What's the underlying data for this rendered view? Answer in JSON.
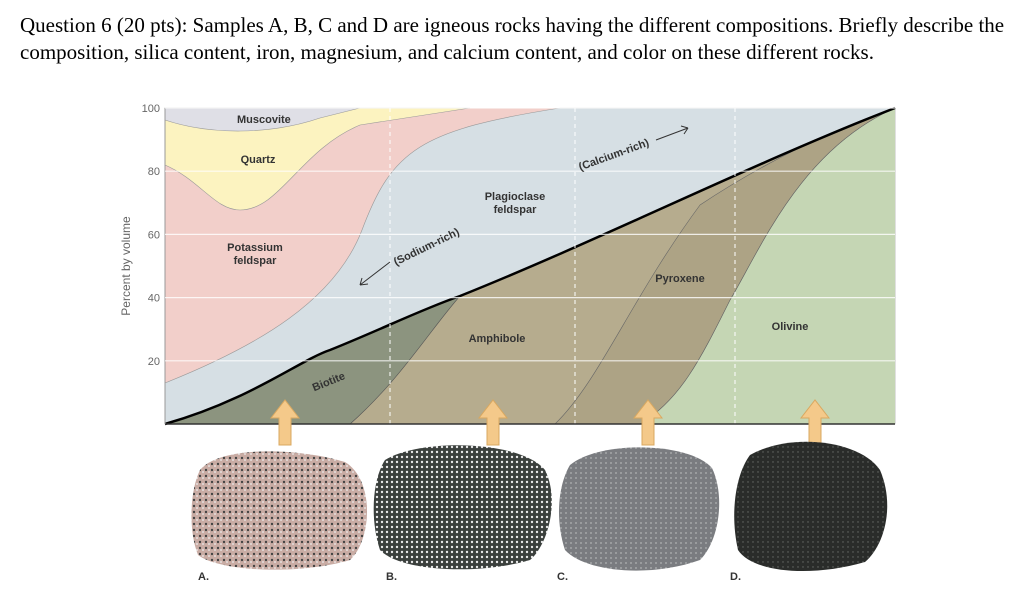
{
  "question": "Question 6 (20 pts): Samples A, B, C and D are igneous rocks having the different compositions. Briefly describe the composition, silica content, iron, magnesium, and calcium content, and color on these different rocks.",
  "diagram": {
    "y_axis_label": "Percent by volume",
    "yticks": [
      20,
      40,
      60,
      80,
      100
    ],
    "labels": {
      "muscovite": "Muscovite",
      "quartz": "Quartz",
      "potassium_feldspar": [
        "Potassium",
        "feldspar"
      ],
      "plagioclase_feldspar": [
        "Plagioclase",
        "feldspar"
      ],
      "sodium_rich": "(Sodium-rich)",
      "calcium_rich": "(Calcium-rich)",
      "biotite": "Biotite",
      "amphibole": "Amphibole",
      "pyroxene": "Pyroxene",
      "olivine": "Olivine"
    },
    "samples": [
      "A.",
      "B.",
      "C.",
      "D."
    ]
  }
}
